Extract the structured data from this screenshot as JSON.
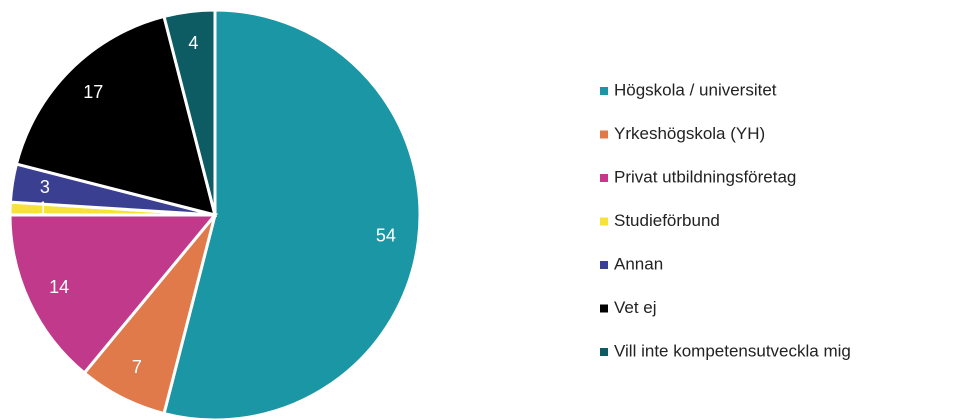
{
  "chart_data": {
    "type": "pie",
    "categories": [
      "Högskola / universitet",
      "Yrkeshögskola (YH)",
      "Privat utbildningsföretag",
      "Studieförbund",
      "Annan",
      "Vet ej",
      "Vill inte kompetensutveckla mig"
    ],
    "values": [
      54,
      7,
      14,
      1,
      3,
      17,
      4
    ],
    "colors": [
      "#1b96a4",
      "#e07a4a",
      "#c0398b",
      "#f7e23b",
      "#3a3f91",
      "#000000",
      "#0d5b63"
    ],
    "legend": "right"
  }
}
